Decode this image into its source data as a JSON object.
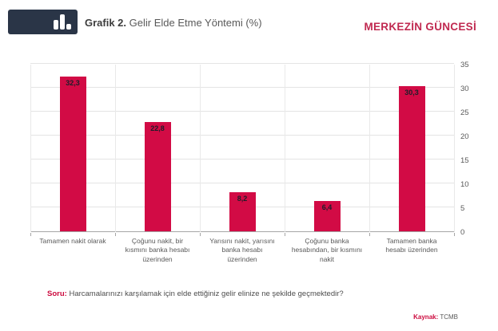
{
  "header": {
    "title_bold": "Grafik 2.",
    "title_rest": " Gelir Elde Etme Yöntemi (%)",
    "brand": "MERKEZİN GÜNCESİ"
  },
  "colors": {
    "bar": "#d20b45",
    "brand_red": "#c02950",
    "accent_red": "#cc0a3e",
    "logo_navy": "#2a3547",
    "grid": "#e4e4e4",
    "axis": "#a6a6a6",
    "text": "#595959"
  },
  "chart_data": {
    "type": "bar",
    "title": "Grafik 2. Gelir Elde Etme Yöntemi (%)",
    "categories": [
      "Tamamen nakit olarak",
      "Çoğunu nakit, bir kısmını banka hesabı üzerinden",
      "Yarısını nakit, yarısını banka hesabı üzerinden",
      "Çoğunu banka hesabından, bir kısmını nakit",
      "Tamamen banka hesabı üzerinden"
    ],
    "values": [
      32.3,
      22.8,
      8.2,
      6.4,
      30.3
    ],
    "value_labels": [
      "32,3",
      "22,8",
      "8,2",
      "6,4",
      "30,3"
    ],
    "xlabel": "",
    "ylabel": "",
    "ylim": [
      0,
      35
    ],
    "yticks": [
      0,
      5,
      10,
      15,
      20,
      25,
      30,
      35
    ],
    "grid": true,
    "yaxis_position": "right",
    "legend": false
  },
  "footer": {
    "question_label": "Soru:",
    "question_text": " Harcamalarınızı karşılamak için elde ettiğiniz gelir elinize ne şekilde geçmektedir?",
    "source_label": "Kaynak:",
    "source_text": " TCMB"
  }
}
